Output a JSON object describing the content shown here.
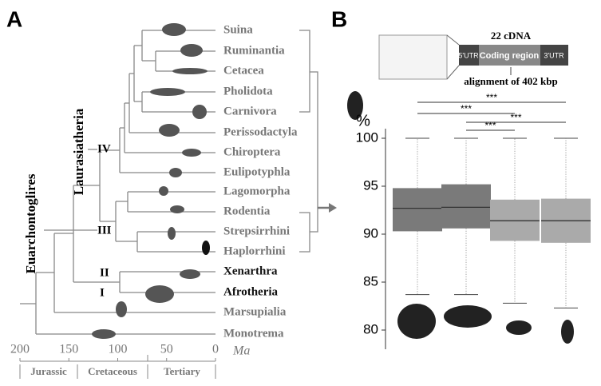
{
  "tree": {
    "label": "A",
    "taxa": [
      {
        "name": "Suina",
        "color": "#777777"
      },
      {
        "name": "Ruminantia",
        "color": "#777777"
      },
      {
        "name": "Cetacea",
        "color": "#777777"
      },
      {
        "name": "Pholidota",
        "color": "#777777"
      },
      {
        "name": "Carnivora",
        "color": "#777777"
      },
      {
        "name": "Perissodactyla",
        "color": "#777777"
      },
      {
        "name": "Chiroptera",
        "color": "#777777"
      },
      {
        "name": "Eulipotyphla",
        "color": "#777777"
      },
      {
        "name": "Lagomorpha",
        "color": "#777777"
      },
      {
        "name": "Rodentia",
        "color": "#777777"
      },
      {
        "name": "Strepsirrhini",
        "color": "#777777"
      },
      {
        "name": "Haplorrhini",
        "color": "#777777"
      },
      {
        "name": "Xenarthra",
        "color": "#111111"
      },
      {
        "name": "Afrotheria",
        "color": "#111111"
      },
      {
        "name": "Marsupialia",
        "color": "#777777"
      },
      {
        "name": "Monotrema",
        "color": "#777777"
      }
    ],
    "clades": [
      "Laurasiatheria",
      "Euarchontoglires"
    ],
    "nodes": [
      "IV",
      "III",
      "II",
      "I"
    ],
    "time_axis": {
      "ticks": [
        200,
        150,
        100,
        50,
        0
      ],
      "unit": "Ma",
      "periods": [
        "Jurassic",
        "Cretaceous",
        "Tertiary"
      ]
    }
  },
  "inset": {
    "title": "22 cDNA",
    "segments": [
      "5'UTR",
      "Coding region",
      "3'UTR"
    ],
    "caption": "alignment of 402 kbp"
  },
  "chart_data": {
    "type": "box",
    "label": "B",
    "ylabel": "%",
    "categories": [
      null,
      null,
      null,
      null
    ],
    "boxes": [
      {
        "whislo": 83.7,
        "q1": 90.3,
        "med": 92.7,
        "q3": 94.8,
        "whishi": 100,
        "color": "#7a7a7a"
      },
      {
        "whislo": 83.7,
        "q1": 90.6,
        "med": 92.8,
        "q3": 95.2,
        "whishi": 100,
        "color": "#7a7a7a"
      },
      {
        "whislo": 82.8,
        "q1": 89.3,
        "med": 91.4,
        "q3": 93.6,
        "whishi": 100,
        "color": "#aaaaaa"
      },
      {
        "whislo": 82.3,
        "q1": 89.1,
        "med": 91.4,
        "q3": 93.7,
        "whishi": 100,
        "color": "#aaaaaa"
      }
    ],
    "ylim": [
      78,
      101
    ],
    "yticks": [
      80,
      85,
      90,
      95,
      100
    ],
    "annotations": [
      "***",
      "***",
      "***",
      "***"
    ]
  }
}
